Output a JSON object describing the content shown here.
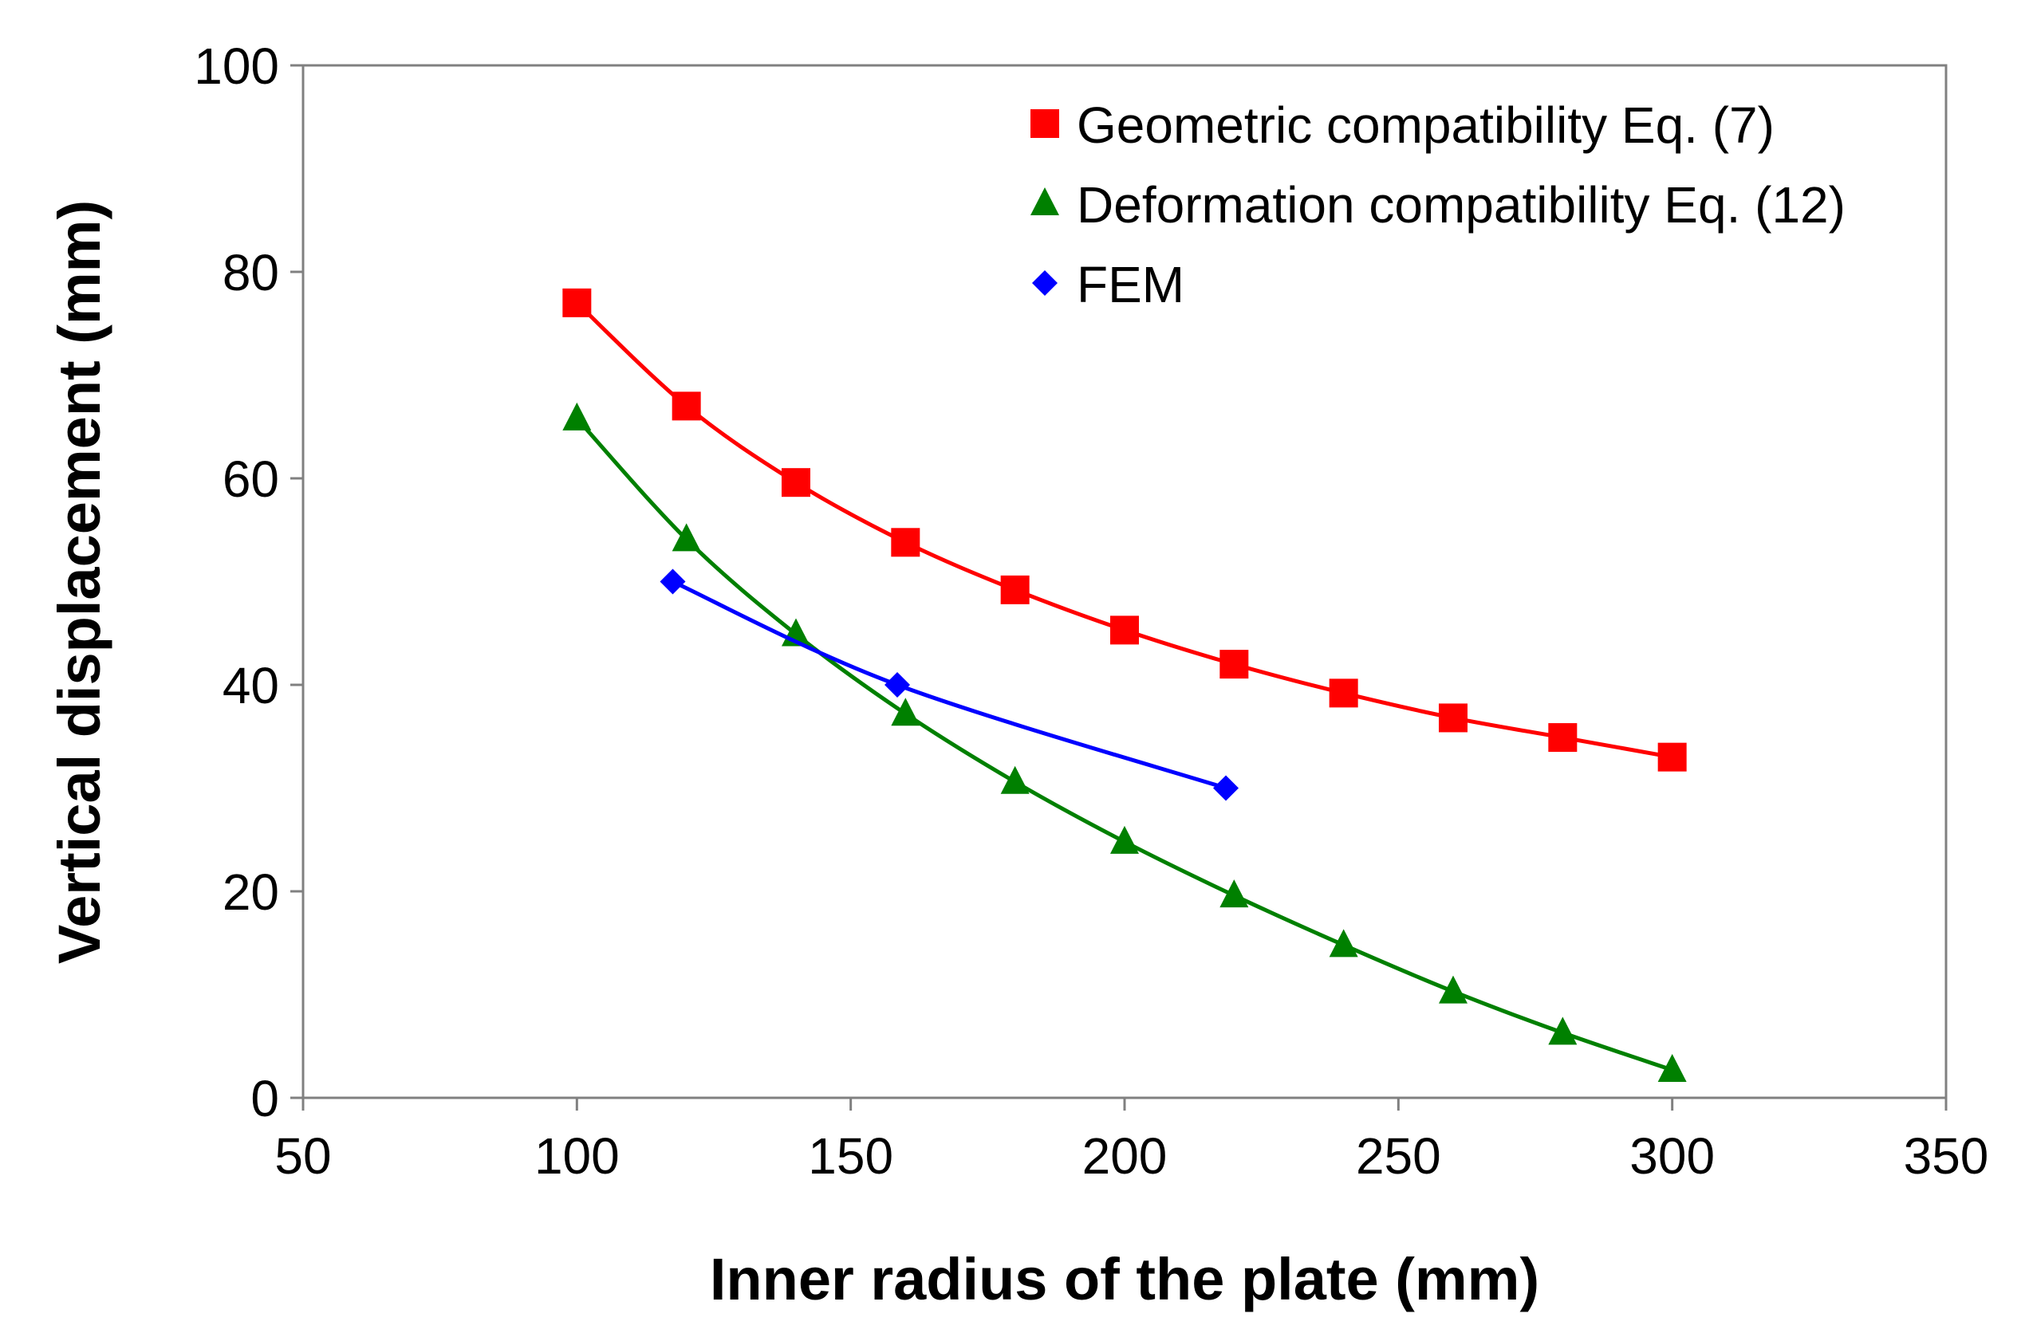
{
  "chart_data": {
    "type": "scatter",
    "title": "",
    "xlabel": "Inner radius of the plate (mm)",
    "ylabel": "Vertical displacement (mm)",
    "xlim": [
      50,
      350
    ],
    "ylim": [
      0,
      100
    ],
    "x_ticks": [
      50,
      100,
      150,
      200,
      250,
      300,
      350
    ],
    "y_ticks": [
      0,
      20,
      40,
      60,
      80,
      100
    ],
    "x_tick_labels": [
      "50",
      "100",
      "150",
      "200",
      "250",
      "300",
      "350"
    ],
    "y_tick_labels": [
      "0",
      "20",
      "40",
      "60",
      "80",
      "100"
    ],
    "grid": false,
    "legend_position": "top-right",
    "series": [
      {
        "name": "Geometric compatibility Eq. (7)",
        "marker": "square",
        "color": "#ff0000",
        "trendline": true,
        "x": [
          100,
          120,
          140,
          160,
          180,
          200,
          220,
          240,
          260,
          280,
          300
        ],
        "y": [
          77.0,
          67.0,
          59.6,
          53.8,
          49.2,
          45.3,
          42.0,
          39.2,
          36.8,
          34.9,
          33.0
        ]
      },
      {
        "name": "Deformation compatibility Eq. (12)",
        "marker": "triangle",
        "color": "#008000",
        "trendline": true,
        "x": [
          100,
          120,
          140,
          160,
          180,
          200,
          220,
          240,
          260,
          280,
          300
        ],
        "y": [
          65.8,
          54.1,
          44.9,
          37.2,
          30.6,
          24.8,
          19.6,
          14.8,
          10.3,
          6.3,
          2.7
        ]
      },
      {
        "name": "FEM",
        "marker": "diamond",
        "color": "#0000ff",
        "trendline": true,
        "x": [
          117.5,
          158.5,
          218.5
        ],
        "y": [
          50,
          40,
          30
        ]
      }
    ]
  }
}
